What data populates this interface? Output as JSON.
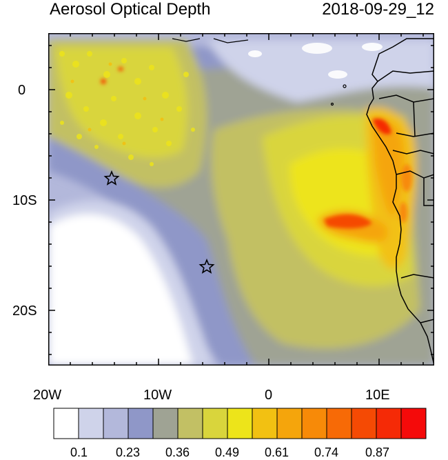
{
  "title": "Aerosol Optical Depth",
  "timestamp": "2018-09-29_12",
  "axes": {
    "x_ticks": [
      "20W",
      "10W",
      "0",
      "10E"
    ],
    "y_ticks": [
      "0",
      "10S",
      "20S"
    ]
  },
  "colorbar": {
    "labels": [
      "0.1",
      "0.23",
      "0.36",
      "0.49",
      "0.61",
      "0.74",
      "0.87"
    ],
    "colors": [
      "#ffffff",
      "#cfd3ea",
      "#b3b8db",
      "#8f97c8",
      "#9fa394",
      "#c2c064",
      "#d9d53c",
      "#ede41a",
      "#f2c112",
      "#f5a50c",
      "#f78a08",
      "#f76a06",
      "#f54a04",
      "#f52a06",
      "#f50a0a"
    ]
  },
  "markers": {
    "icon": "star-icon",
    "count": 2
  }
}
